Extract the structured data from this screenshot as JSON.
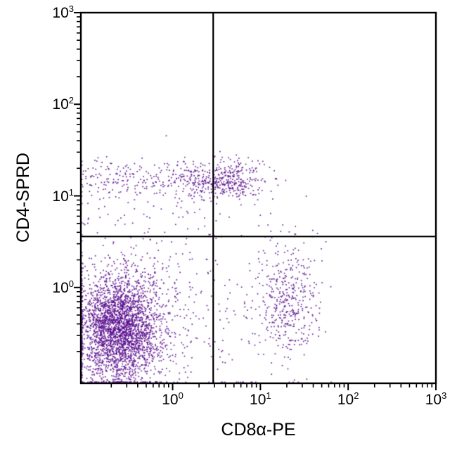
{
  "chart_data": {
    "type": "scatter",
    "title": "",
    "xlabel": "CD8α-PE",
    "ylabel": "CD4-SPRD",
    "x_scale": "log",
    "y_scale": "log",
    "xlim": [
      0.09,
      1000
    ],
    "ylim": [
      0.09,
      1000
    ],
    "tick_exponents": [
      0,
      1,
      2,
      3
    ],
    "grid": false,
    "legend": "none",
    "dot_color": "#5a0d8e",
    "frame_color": "#000000",
    "quadrant_gate": {
      "x": 2.9,
      "y": 3.6
    },
    "populations": [
      {
        "name": "double-negative-core",
        "count": 2600,
        "cx": -0.6,
        "cy": -0.45,
        "sx": 0.22,
        "sy": 0.28
      },
      {
        "name": "double-negative-halo",
        "count": 500,
        "cx": -0.5,
        "cy": -0.3,
        "sx": 0.45,
        "sy": 0.5
      },
      {
        "name": "cd4-band-uniform",
        "count": 260,
        "ux": [
          -1.05,
          0.75
        ],
        "cy": 1.2,
        "sy": 0.1
      },
      {
        "name": "cd4-band-core",
        "count": 330,
        "cx": 0.6,
        "cy": 1.17,
        "sx": 0.25,
        "sy": 0.1
      },
      {
        "name": "cd4-below-band",
        "count": 90,
        "ux": [
          -1.0,
          1.0
        ],
        "cy": 0.95,
        "sy": 0.22
      },
      {
        "name": "cd8-positive",
        "count": 430,
        "cx": 1.3,
        "cy": -0.15,
        "sx": 0.18,
        "sy": 0.33
      },
      {
        "name": "dn-cd8-bridge",
        "count": 110,
        "ux": [
          -0.3,
          0.95
        ],
        "cy": -0.5,
        "sy": 0.4
      }
    ]
  }
}
